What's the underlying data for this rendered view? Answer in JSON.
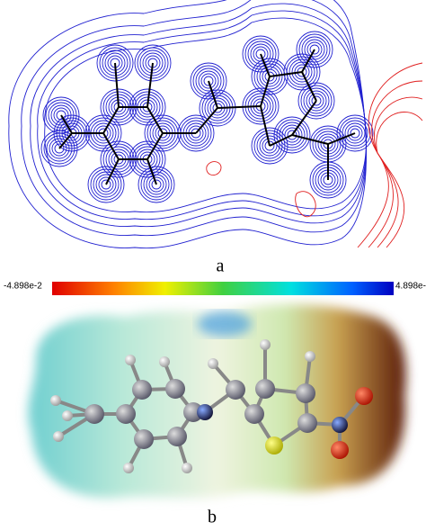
{
  "panel_a": {
    "label": "a"
  },
  "color_scale": {
    "min_label": "-4.898e-2",
    "max_label": "4.898e-"
  },
  "panel_b": {
    "label": "b"
  }
}
